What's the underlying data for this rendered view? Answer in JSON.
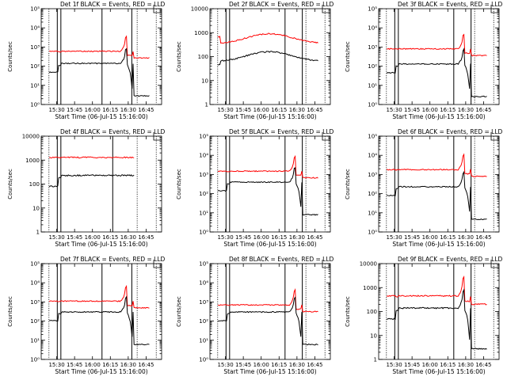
{
  "chart_data": {
    "type": "line",
    "xlabel": "Start Time (06-Jul-15 15:16:00)",
    "x_tick_labels": [
      "15:30",
      "15:45",
      "16:00",
      "16:15",
      "16:30",
      "16:45"
    ],
    "x_tick_minutes": [
      30,
      45,
      60,
      75,
      90,
      105
    ],
    "x_range_minutes": [
      17,
      118
    ],
    "legend": "top-right corner bracket",
    "colors": {
      "events": "#000000",
      "lld": "#ff0000"
    },
    "panels": [
      {
        "title": "Det 1f BLACK = Events, RED = LLD",
        "ylabel": "Counts/sec",
        "yscale": "log",
        "ylim": [
          1,
          100000
        ],
        "ytick_style": "exp",
        "ytick_labels": [
          "10⁰",
          "10¹",
          "10²",
          "10³",
          "10⁴",
          "10⁵"
        ],
        "vlines": [
          30.5,
          33.5,
          68,
          93
        ],
        "lld_base": 600,
        "ev_base": 140,
        "spike": 1,
        "wide_curve": 0,
        "tail": 1
      },
      {
        "title": "Det 2f BLACK = Events, RED = LLD",
        "ylabel": "Counts/sec",
        "yscale": "log",
        "ylim": [
          1,
          10000
        ],
        "ytick_style": "num",
        "ytick_labels": [
          "1",
          "10",
          "100",
          "1000",
          "10000"
        ],
        "vlines": [
          30.5,
          33.5,
          80,
          94.5
        ],
        "lld_base": 450,
        "ev_base": 80,
        "spike": 0,
        "wide_curve": 1,
        "tail": 0
      },
      {
        "title": "Det 3f BLACK = Events, RED = LLD",
        "ylabel": "Counts/sec",
        "yscale": "log",
        "ylim": [
          1,
          100000
        ],
        "ytick_style": "exp",
        "ytick_labels": [
          "10⁰",
          "10¹",
          "10²",
          "10³",
          "10⁴",
          "10⁵"
        ],
        "vlines": [
          30.5,
          33.5,
          80,
          94.5
        ],
        "lld_base": 800,
        "ev_base": 130,
        "spike": 1,
        "wide_curve": 0,
        "tail": 1
      },
      {
        "title": "Det 4f BLACK = Events, RED = LLD",
        "ylabel": "Counts/sec",
        "yscale": "log",
        "ylim": [
          1,
          10000
        ],
        "ytick_style": "num",
        "ytick_labels": [
          "1",
          "10",
          "100",
          "1000",
          "10000"
        ],
        "vlines": [
          30.5,
          33.5,
          77
        ],
        "lld_base": 1300,
        "ev_base": 230,
        "spike": 0,
        "wide_curve": 0,
        "tail": 0
      },
      {
        "title": "Det 5f BLACK = Events, RED = LLD",
        "ylabel": "Counts/sec",
        "yscale": "log",
        "ylim": [
          1,
          100000
        ],
        "ytick_style": "exp",
        "ytick_labels": [
          "10⁰",
          "10¹",
          "10²",
          "10³",
          "10⁴",
          "10⁵"
        ],
        "vlines": [
          30.5,
          33.5,
          80,
          94.5
        ],
        "lld_base": 1500,
        "ev_base": 400,
        "spike": 1,
        "wide_curve": 0,
        "tail": 1
      },
      {
        "title": "Det 6f BLACK = Events, RED = LLD",
        "ylabel": "Counts/sec",
        "yscale": "log",
        "ylim": [
          1,
          100000
        ],
        "ytick_style": "exp",
        "ytick_labels": [
          "10⁰",
          "10¹",
          "10²",
          "10³",
          "10⁴",
          "10⁵"
        ],
        "vlines": [
          30.5,
          33.5,
          80,
          94.5
        ],
        "lld_base": 1800,
        "ev_base": 230,
        "spike": 1,
        "wide_curve": 0,
        "tail": 1
      },
      {
        "title": "Det 7f BLACK = Events, RED = LLD",
        "ylabel": "Counts/sec",
        "yscale": "log",
        "ylim": [
          1,
          100000
        ],
        "ytick_style": "exp",
        "ytick_labels": [
          "10⁰",
          "10¹",
          "10²",
          "10³",
          "10⁴",
          "10⁵"
        ],
        "vlines": [
          30.5,
          33.5,
          68,
          93
        ],
        "lld_base": 1100,
        "ev_base": 300,
        "spike": 1,
        "wide_curve": 0,
        "tail": 1
      },
      {
        "title": "Det 8f BLACK = Events, RED = LLD",
        "ylabel": "Counts/sec",
        "yscale": "log",
        "ylim": [
          1,
          100000
        ],
        "ytick_style": "exp",
        "ytick_labels": [
          "10⁰",
          "10¹",
          "10²",
          "10³",
          "10⁴",
          "10⁵"
        ],
        "vlines": [
          30.5,
          33.5,
          80,
          94.5
        ],
        "lld_base": 700,
        "ev_base": 300,
        "spike": 1,
        "wide_curve": 0,
        "tail": 1
      },
      {
        "title": "Det 9f BLACK = Events, RED = LLD",
        "ylabel": "Counts/sec",
        "yscale": "log",
        "ylim": [
          1,
          10000
        ],
        "ytick_style": "num",
        "ytick_labels": [
          "1",
          "10",
          "100",
          "1000",
          "10000"
        ],
        "vlines": [
          30.5,
          33.5,
          80,
          94.5
        ],
        "lld_base": 450,
        "ev_base": 140,
        "spike": 1,
        "wide_curve": 0,
        "tail": 1
      }
    ]
  }
}
